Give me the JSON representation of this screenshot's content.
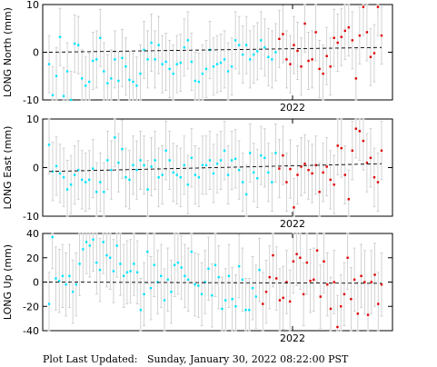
{
  "footer": {
    "label": "Plot Last Updated:",
    "value": "Sunday, January 30, 2022 08:22:00 PST"
  },
  "colors": {
    "old": "#00e5ff",
    "recent": "#e00000",
    "error_bar": "#c8c8c8",
    "trend": "#000000"
  },
  "chart_data": [
    {
      "type": "scatter",
      "ylabel": "LONG North (mm)",
      "xtick_label": "2022",
      "ylim": [
        -10,
        10
      ],
      "yticks": [
        -10,
        0,
        10
      ],
      "error": 6,
      "trend": [
        0.0,
        1.0
      ],
      "old_points": [
        -2.5,
        -9,
        -5,
        3.2,
        -9.2,
        -4,
        -10,
        1.8,
        1.5,
        -5.5,
        -7,
        -6.2,
        -1.8,
        -1.5,
        3,
        -4,
        -6.5,
        -5.5,
        -1.5,
        -6,
        -1.2,
        -3,
        -5.8,
        -6.2,
        -7,
        -4.5,
        0.5,
        -1.5,
        2,
        -1.5,
        1.5,
        -2.5,
        -2,
        -3.5,
        -4.5,
        -2.5,
        -2.2,
        1,
        2.5,
        -2,
        -6,
        -6.2,
        -4.5,
        -3.5,
        0.5,
        -3,
        -2.5,
        -2.2,
        -1.5,
        -4,
        -3,
        2.5,
        1.5,
        -0.5,
        1.5,
        -1.5,
        -0.5,
        0.2,
        2.5,
        1,
        -1,
        -1.5,
        0
      ],
      "recent_points": [
        2.8,
        3.8,
        -1.5,
        -2.5,
        1.5,
        0.3,
        -3,
        6,
        -1.8,
        -1.5,
        4.2,
        -3.5,
        -4.5,
        -0.8,
        -3,
        3,
        2,
        3.2,
        4.5,
        5.2,
        2.5,
        -5.5,
        3.5,
        9.5,
        4.2,
        -1,
        -0.2,
        9.5,
        3.5
      ]
    },
    {
      "type": "scatter",
      "ylabel": "LONG East (mm)",
      "xtick_label": "2022",
      "ylim": [
        -10,
        10
      ],
      "yticks": [
        -10,
        0,
        10
      ],
      "error": 6,
      "trend": [
        -0.8,
        0.8
      ],
      "old_points": [
        4.7,
        -0.8,
        0.3,
        -1.2,
        -2,
        -4.5,
        -3.5,
        -1.5,
        -0.5,
        -2.5,
        -3,
        -2.5,
        -0.2,
        -5,
        -3,
        -5,
        1.5,
        -0.5,
        6.2,
        1,
        3.8,
        -2,
        -2.5,
        0.5,
        -0.5,
        1.5,
        0.5,
        -4.5,
        0.2,
        1.5,
        -2,
        -1.5,
        3.5,
        1.5,
        -1,
        -1.5,
        -2,
        0.5,
        -3.5,
        2,
        -1.5,
        -2,
        0.5,
        0.5,
        1.5,
        -1.2,
        0.8,
        1.5,
        3.5,
        -1.5,
        1.5,
        1.8,
        -0.5,
        -3,
        -5.5,
        3,
        -1,
        -2.2,
        2.5,
        2,
        -1,
        -3,
        3
      ],
      "recent_points": [
        -0.2,
        2.5,
        -3,
        -0.3,
        -8.2,
        -1.5,
        0.2,
        0.8,
        -0.5,
        -1.2,
        0.5,
        -5,
        -1,
        0.2,
        -2.5,
        -3.5,
        4.5,
        4,
        -1.5,
        -6.5,
        3.5,
        8,
        7.5,
        5.5,
        1,
        2,
        -2,
        -3,
        3.5
      ]
    },
    {
      "type": "scatter",
      "ylabel": "LONG Up (mm)",
      "xtick_label": "2022",
      "ylim": [
        -40,
        40
      ],
      "yticks": [
        -40,
        -20,
        0,
        20,
        40
      ],
      "error": 26,
      "trend": [
        0.0,
        -1.0
      ],
      "old_points": [
        -18,
        37,
        3,
        1,
        5,
        -2,
        5,
        -8,
        -2,
        15,
        27,
        33,
        30,
        35,
        16,
        10,
        33,
        22,
        20,
        9,
        30,
        15,
        5,
        8,
        9,
        15,
        8,
        -23,
        -10,
        25,
        -5,
        14,
        0,
        5,
        -15,
        2,
        -8,
        14,
        16,
        12,
        5,
        2,
        25,
        -2,
        -3,
        -10,
        0,
        11,
        -11,
        14,
        4,
        -22,
        -15,
        5,
        -14,
        -20,
        13,
        2,
        -23,
        -23,
        -5,
        -12,
        10
      ],
      "recent_points": [
        -18,
        -8,
        4,
        22,
        3,
        -15,
        -13,
        0,
        -16,
        17,
        23,
        20,
        -10,
        16,
        1,
        2,
        26,
        -12,
        17,
        -2,
        -22,
        0,
        -37,
        -20,
        -10,
        20,
        -14,
        2,
        -26,
        5,
        0,
        -27,
        0,
        6,
        -18,
        -2
      ]
    }
  ]
}
